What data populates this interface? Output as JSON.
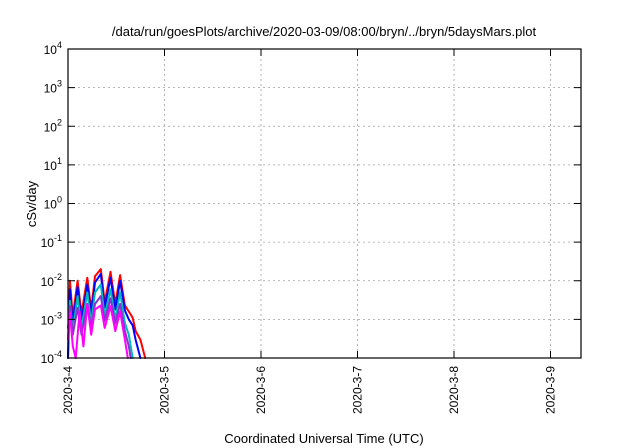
{
  "chart_data": {
    "type": "line",
    "title": "/data/run/goesPlots/archive/2020-03-09/08:00/bryn/../bryn/5daysMars.plot",
    "xlabel": "Coordinated Universal Time (UTC)",
    "ylabel": "cSv/day",
    "y_scale": "log",
    "ylim_exp": [
      -4,
      4
    ],
    "y_ticks": [
      {
        "base": "10",
        "exp": "-4"
      },
      {
        "base": "10",
        "exp": "-3"
      },
      {
        "base": "10",
        "exp": "-2"
      },
      {
        "base": "10",
        "exp": "-1"
      },
      {
        "base": "10",
        "exp": "0"
      },
      {
        "base": "10",
        "exp": "1"
      },
      {
        "base": "10",
        "exp": "2"
      },
      {
        "base": "10",
        "exp": "3"
      },
      {
        "base": "10",
        "exp": "4"
      }
    ],
    "x_ticks": [
      "2020-3-4",
      "2020-3-5",
      "2020-3-6",
      "2020-3-7",
      "2020-3-8",
      "2020-3-9"
    ],
    "xlim_days": [
      4,
      9.3
    ],
    "grid": true,
    "legend": "none",
    "series": [
      {
        "color": "#ff0000",
        "points": [
          [
            4.0,
            0.0001
          ],
          [
            4.02,
            0.01
          ],
          [
            4.05,
            0.0012
          ],
          [
            4.1,
            0.01
          ],
          [
            4.14,
            0.0014
          ],
          [
            4.2,
            0.012
          ],
          [
            4.24,
            0.0018
          ],
          [
            4.28,
            0.013
          ],
          [
            4.34,
            0.02
          ],
          [
            4.38,
            0.0028
          ],
          [
            4.44,
            0.017
          ],
          [
            4.49,
            0.0025
          ],
          [
            4.54,
            0.014
          ],
          [
            4.59,
            0.0023
          ],
          [
            4.63,
            0.0016
          ],
          [
            4.67,
            0.0011
          ],
          [
            4.7,
            0.0005
          ],
          [
            4.75,
            0.0003
          ],
          [
            4.8,
            0.0001
          ]
        ]
      },
      {
        "color": "#0000ff",
        "points": [
          [
            4.0,
            0.0001
          ],
          [
            4.02,
            0.006
          ],
          [
            4.05,
            0.0008
          ],
          [
            4.1,
            0.007
          ],
          [
            4.14,
            0.0009
          ],
          [
            4.2,
            0.008
          ],
          [
            4.24,
            0.0013
          ],
          [
            4.28,
            0.009
          ],
          [
            4.34,
            0.015
          ],
          [
            4.38,
            0.002
          ],
          [
            4.44,
            0.012
          ],
          [
            4.49,
            0.0018
          ],
          [
            4.54,
            0.01
          ],
          [
            4.59,
            0.0017
          ],
          [
            4.63,
            0.001
          ],
          [
            4.67,
            0.0007
          ],
          [
            4.7,
            0.0003
          ],
          [
            4.75,
            0.0001
          ]
        ]
      },
      {
        "color": "#00bbbb",
        "points": [
          [
            4.0,
            0.0003
          ],
          [
            4.02,
            0.003
          ],
          [
            4.05,
            0.0005
          ],
          [
            4.1,
            0.004
          ],
          [
            4.14,
            0.0006
          ],
          [
            4.2,
            0.005
          ],
          [
            4.24,
            0.0008
          ],
          [
            4.28,
            0.005
          ],
          [
            4.34,
            0.008
          ],
          [
            4.38,
            0.0012
          ],
          [
            4.44,
            0.006
          ],
          [
            4.49,
            0.001
          ],
          [
            4.54,
            0.005
          ],
          [
            4.59,
            0.0008
          ],
          [
            4.63,
            0.0004
          ],
          [
            4.67,
            0.0001
          ]
        ]
      },
      {
        "color": "#8833cc",
        "points": [
          [
            4.0,
            0.0006
          ],
          [
            4.02,
            0.0022
          ],
          [
            4.05,
            0.0004
          ],
          [
            4.1,
            0.002
          ],
          [
            4.14,
            0.0004
          ],
          [
            4.2,
            0.0025
          ],
          [
            4.24,
            0.0006
          ],
          [
            4.28,
            0.0025
          ],
          [
            4.34,
            0.004
          ],
          [
            4.38,
            0.0009
          ],
          [
            4.44,
            0.0035
          ],
          [
            4.49,
            0.0008
          ],
          [
            4.54,
            0.0025
          ],
          [
            4.59,
            0.0005
          ],
          [
            4.63,
            0.0002
          ],
          [
            4.65,
            0.0001
          ]
        ]
      },
      {
        "color": "#ff00ff",
        "points": [
          [
            4.0,
            0.0003
          ],
          [
            4.02,
            0.0015
          ],
          [
            4.05,
            0.0002
          ],
          [
            4.08,
            0.0001
          ],
          [
            4.12,
            0.0016
          ],
          [
            4.16,
            0.0002
          ],
          [
            4.2,
            0.0025
          ],
          [
            4.24,
            0.0004
          ],
          [
            4.28,
            0.0018
          ],
          [
            4.34,
            0.0023
          ],
          [
            4.38,
            0.0006
          ],
          [
            4.44,
            0.0022
          ],
          [
            4.49,
            0.0005
          ],
          [
            4.54,
            0.0016
          ],
          [
            4.59,
            0.0003
          ],
          [
            4.62,
            0.0001
          ]
        ]
      }
    ]
  }
}
